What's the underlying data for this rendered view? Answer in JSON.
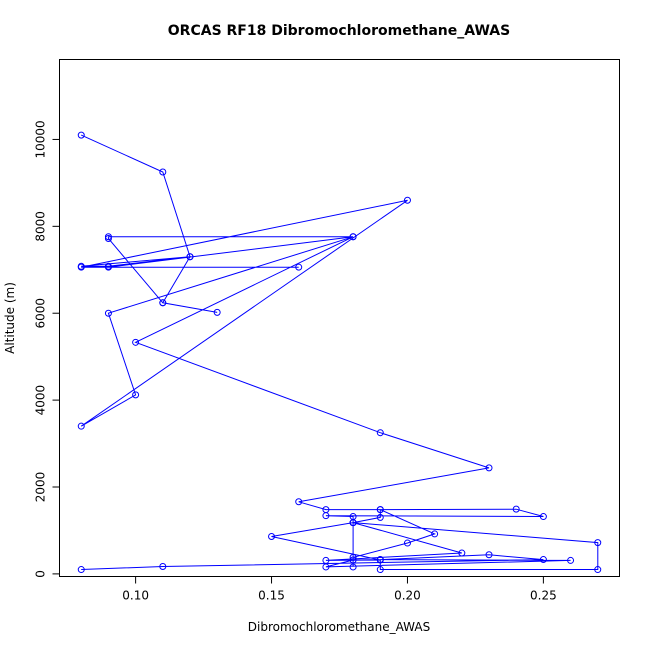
{
  "chart_data": {
    "type": "line",
    "title": "ORCAS RF18 Dibromochloromethane_AWAS",
    "xlabel": "Dibromochloromethane_AWAS",
    "ylabel": "Altitude (m)",
    "xlim": [
      0.072,
      0.278
    ],
    "ylim": [
      -60,
      11840
    ],
    "x_ticks": [
      0.1,
      0.15,
      0.2,
      0.25
    ],
    "x_tick_labels": [
      "0.10",
      "0.15",
      "0.20",
      "0.25"
    ],
    "y_ticks": [
      0,
      2000,
      4000,
      6000,
      8000,
      10000
    ],
    "y_tick_labels": [
      "0",
      "2000",
      "4000",
      "6000",
      "8000",
      "10000"
    ],
    "grid": false,
    "series": [
      {
        "color": "#0000ff",
        "marker": "open-circle",
        "x": [
          0.08,
          0.11,
          0.12,
          0.08,
          0.09,
          0.12,
          0.11,
          0.13,
          0.11,
          0.09,
          0.09,
          0.18,
          0.09,
          0.16,
          0.08,
          0.2,
          0.08,
          0.1,
          0.09,
          0.18,
          0.1,
          0.19,
          0.23,
          0.16,
          0.17,
          0.19,
          0.24,
          0.25,
          0.17,
          0.18,
          0.18,
          0.19,
          0.19,
          0.21,
          0.2,
          0.18,
          0.18,
          0.18,
          0.22,
          0.17,
          0.19,
          0.15,
          0.18,
          0.27,
          0.27,
          0.19,
          0.19,
          0.26,
          0.17,
          0.18,
          0.19,
          0.23,
          0.25,
          0.11,
          0.08
        ],
        "y": [
          10100,
          9250,
          7300,
          7080,
          7080,
          7300,
          6240,
          6020,
          6240,
          7720,
          7760,
          7760,
          7060,
          7060,
          7060,
          8600,
          3400,
          4120,
          6000,
          7760,
          5330,
          3250,
          2440,
          1660,
          1480,
          1480,
          1490,
          1320,
          1340,
          1320,
          1180,
          1300,
          1480,
          920,
          710,
          380,
          160,
          1180,
          480,
          310,
          320,
          860,
          1180,
          720,
          100,
          100,
          330,
          310,
          160,
          320,
          330,
          440,
          330,
          170,
          100
        ]
      }
    ]
  }
}
